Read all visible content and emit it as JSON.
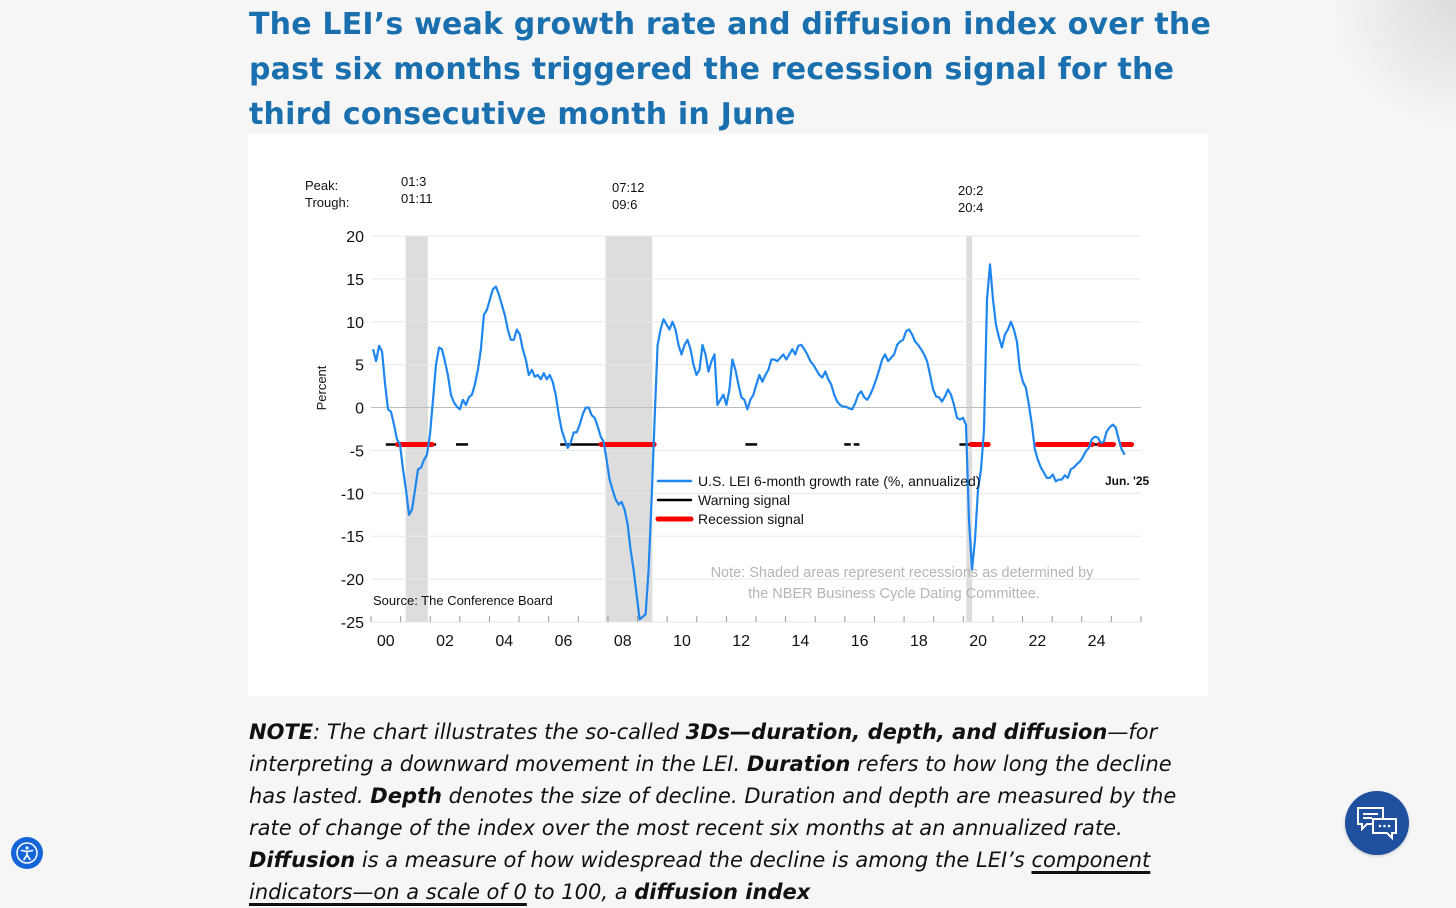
{
  "page": {
    "title": "The LEI’s weak growth rate and diffusion index over the past six months triggered the recession signal for the third consecutive month in June",
    "note": {
      "p1": "NOTE",
      "p2": ": The chart illustrates the so-called ",
      "p3": "3Ds—duration, depth, and diffusion",
      "p4": "—for interpreting a downward movement in the LEI. ",
      "p5": "Duration",
      "p6": " refers to how long the decline has lasted. ",
      "p7": "Depth",
      "p8": " denotes the size of decline. Duration and depth are measured by the rate of change of the index over the most recent six months at an annualized rate. ",
      "p9": "Diffusion",
      "p10": " is a measure of how widespread the decline is among the LEI’s ",
      "link": "component indicators—on a scale of 0",
      "p11": " to 100, a ",
      "p12": "diffusion index"
    },
    "accessibility_icon": "accessibility-icon",
    "chat_icon": "chat-bubbles-icon"
  },
  "colors": {
    "title": "#1a6fae",
    "series": "#1f86f0",
    "warning": "#000000",
    "recession": "#ff0000",
    "shade": "#dddddd",
    "chat": "#1f4f9f"
  },
  "chart_data": {
    "type": "line",
    "ylabel": "Percent",
    "ylim": [
      -25,
      20
    ],
    "yticks": [
      "20",
      "15",
      "10",
      "5",
      "0",
      "-5",
      "-10",
      "-15",
      "-20",
      "-25"
    ],
    "ytick_values": [
      20,
      15,
      10,
      5,
      0,
      -5,
      -10,
      -15,
      -20,
      -25
    ],
    "xlim": [
      2000,
      2026
    ],
    "xticks": [
      "00",
      "02",
      "04",
      "06",
      "08",
      "10",
      "12",
      "14",
      "16",
      "18",
      "20",
      "22",
      "24"
    ],
    "peak_label": "Peak:",
    "trough_label": "Trough:",
    "recessions": [
      {
        "peak": "01:3",
        "trough": "01:11",
        "start": 2001.17,
        "end": 2001.92
      },
      {
        "peak": "07:12",
        "trough": "09:6",
        "start": 2007.92,
        "end": 2009.5
      },
      {
        "peak": "20:2",
        "trough": "20:4",
        "start": 2020.1,
        "end": 2020.3
      }
    ],
    "signal_level": -4.3,
    "warning_segments": [
      [
        2000.5,
        2002.2
      ],
      [
        2002.87,
        2003.28
      ],
      [
        2006.39,
        2007.74
      ],
      [
        2012.64,
        2013.04
      ],
      [
        2015.98,
        2016.2
      ],
      [
        2016.3,
        2016.49
      ],
      [
        2019.87,
        2020.81
      ],
      [
        2022.43,
        2025.0
      ]
    ],
    "recession_segments": [
      [
        2000.9,
        2002.06
      ],
      [
        2007.77,
        2009.56
      ],
      [
        2020.27,
        2020.84
      ],
      [
        2022.5,
        2024.36
      ],
      [
        2024.6,
        2025.07
      ],
      [
        2025.34,
        2025.68
      ]
    ],
    "series": [
      {
        "name": "U.S. LEI 6-month growth rate (%, annualized)",
        "x_start": 2000.07,
        "x_end": 2025.45,
        "values": [
          6.8,
          5.4,
          7.2,
          6.5,
          2.7,
          -0.2,
          -0.5,
          -2.0,
          -3.7,
          -4.3,
          -7.2,
          -9.6,
          -12.5,
          -11.9,
          -9.6,
          -7.2,
          -7.0,
          -6.1,
          -5.5,
          -3.1,
          0.9,
          5.0,
          7.0,
          6.8,
          5.4,
          3.8,
          1.5,
          0.6,
          0.1,
          -0.2,
          0.9,
          0.3,
          1.2,
          1.5,
          2.7,
          4.4,
          6.8,
          10.8,
          11.4,
          12.6,
          13.8,
          14.1,
          13.2,
          12.0,
          10.8,
          9.1,
          7.9,
          7.9,
          9.1,
          8.5,
          6.8,
          5.6,
          3.8,
          4.4,
          3.6,
          3.8,
          3.3,
          4.0,
          3.3,
          3.8,
          3.0,
          1.5,
          -0.8,
          -2.6,
          -3.7,
          -4.7,
          -4.1,
          -2.9,
          -2.9,
          -2.0,
          -0.8,
          0,
          0,
          -0.9,
          -1.2,
          -2.2,
          -3.4,
          -4.0,
          -6.1,
          -8.4,
          -9.6,
          -10.7,
          -11.3,
          -11.0,
          -11.9,
          -13.6,
          -16.6,
          -18.9,
          -21.8,
          -24.7,
          -24.4,
          -24.1,
          -18.9,
          -10.7,
          -1.4,
          7.3,
          9.1,
          10.3,
          9.7,
          9.1,
          10.0,
          9.1,
          7.3,
          6.2,
          7.3,
          7.9,
          6.8,
          5.0,
          3.8,
          4.4,
          7.3,
          6.2,
          4.2,
          5.4,
          6.2,
          0.3,
          0.9,
          1.5,
          0.3,
          2.1,
          5.6,
          4.4,
          2.7,
          1.2,
          0.9,
          -0.2,
          0.9,
          1.5,
          2.7,
          3.8,
          3.0,
          3.8,
          4.4,
          5.6,
          5.6,
          5.4,
          5.8,
          6.2,
          5.6,
          6.2,
          6.8,
          6.2,
          7.2,
          7.3,
          6.8,
          6.2,
          5.4,
          5.0,
          4.4,
          3.8,
          3.5,
          4.2,
          3.3,
          2.7,
          1.5,
          0.7,
          0.3,
          0.1,
          0.1,
          -0.1,
          -0.2,
          0.5,
          1.5,
          1.9,
          1.2,
          0.9,
          1.5,
          2.3,
          3.3,
          4.4,
          5.6,
          6.2,
          5.4,
          5.8,
          6.2,
          7.3,
          7.7,
          7.9,
          8.9,
          9.1,
          8.5,
          7.7,
          7.3,
          6.8,
          6.2,
          5.4,
          3.8,
          2.1,
          1.3,
          1.2,
          0.7,
          1.3,
          2.1,
          1.5,
          0.3,
          -1.2,
          -1.4,
          -1.2,
          -2.0,
          -13.1,
          -18.9,
          -15.4,
          -9.6,
          -7.2,
          -2.6,
          12.6,
          16.7,
          12.6,
          9.7,
          8.2,
          7.0,
          8.5,
          9.1,
          10.0,
          9.1,
          7.7,
          4.4,
          3.0,
          2.3,
          0.3,
          -2.0,
          -4.9,
          -6.1,
          -7.0,
          -7.6,
          -8.2,
          -8.2,
          -7.8,
          -8.6,
          -8.4,
          -8.4,
          -7.9,
          -8.2,
          -7.2,
          -7.0,
          -6.6,
          -6.3,
          -5.8,
          -5.1,
          -4.7,
          -3.7,
          -3.4,
          -3.5,
          -4.1,
          -4.0,
          -2.8,
          -2.3,
          -2.0,
          -2.3,
          -3.7,
          -4.9,
          -5.5
        ]
      }
    ],
    "legend": [
      "U.S. LEI 6-month growth rate (%, annualized)",
      "Warning signal",
      "Recession signal"
    ],
    "legend_placement": "center-bottom",
    "end_label": "Jun. '25",
    "source": "Source: The Conference Board",
    "note_line1": "Note: Shaded areas represent recessions as determined by",
    "note_line2": "the NBER Business Cycle Dating Committee."
  }
}
